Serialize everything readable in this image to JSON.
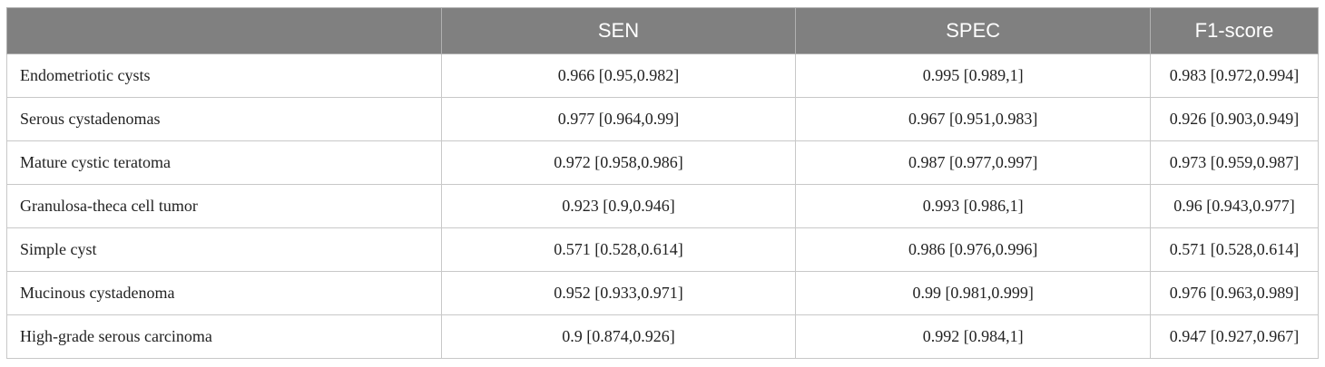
{
  "table": {
    "header": [
      "SEN",
      "SPEC",
      "F1-score"
    ],
    "rows": [
      [
        "Endometriotic cysts",
        "0.966 [0.95,0.982]",
        "0.995 [0.989,1]",
        "0.983 [0.972,0.994]"
      ],
      [
        "Serous cystadenomas",
        "0.977 [0.964,0.99]",
        "0.967 [0.951,0.983]",
        "0.926 [0.903,0.949]"
      ],
      [
        "Mature cystic teratoma",
        "0.972 [0.958,0.986]",
        "0.987 [0.977,0.997]",
        "0.973 [0.959,0.987]"
      ],
      [
        "Granulosa-theca cell tumor",
        "0.923 [0.9,0.946]",
        "0.993 [0.986,1]",
        "0.96 [0.943,0.977]"
      ],
      [
        "Simple cyst",
        "0.571 [0.528,0.614]",
        "0.986 [0.976,0.996]",
        "0.571 [0.528,0.614]"
      ],
      [
        "Mucinous cystadenoma",
        "0.952 [0.933,0.971]",
        "0.99 [0.981,0.999]",
        "0.976 [0.963,0.989]"
      ],
      [
        "High-grade serous carcinoma",
        "0.9 [0.874,0.926]",
        "0.992 [0.984,1]",
        "0.947 [0.927,0.967]"
      ]
    ]
  }
}
